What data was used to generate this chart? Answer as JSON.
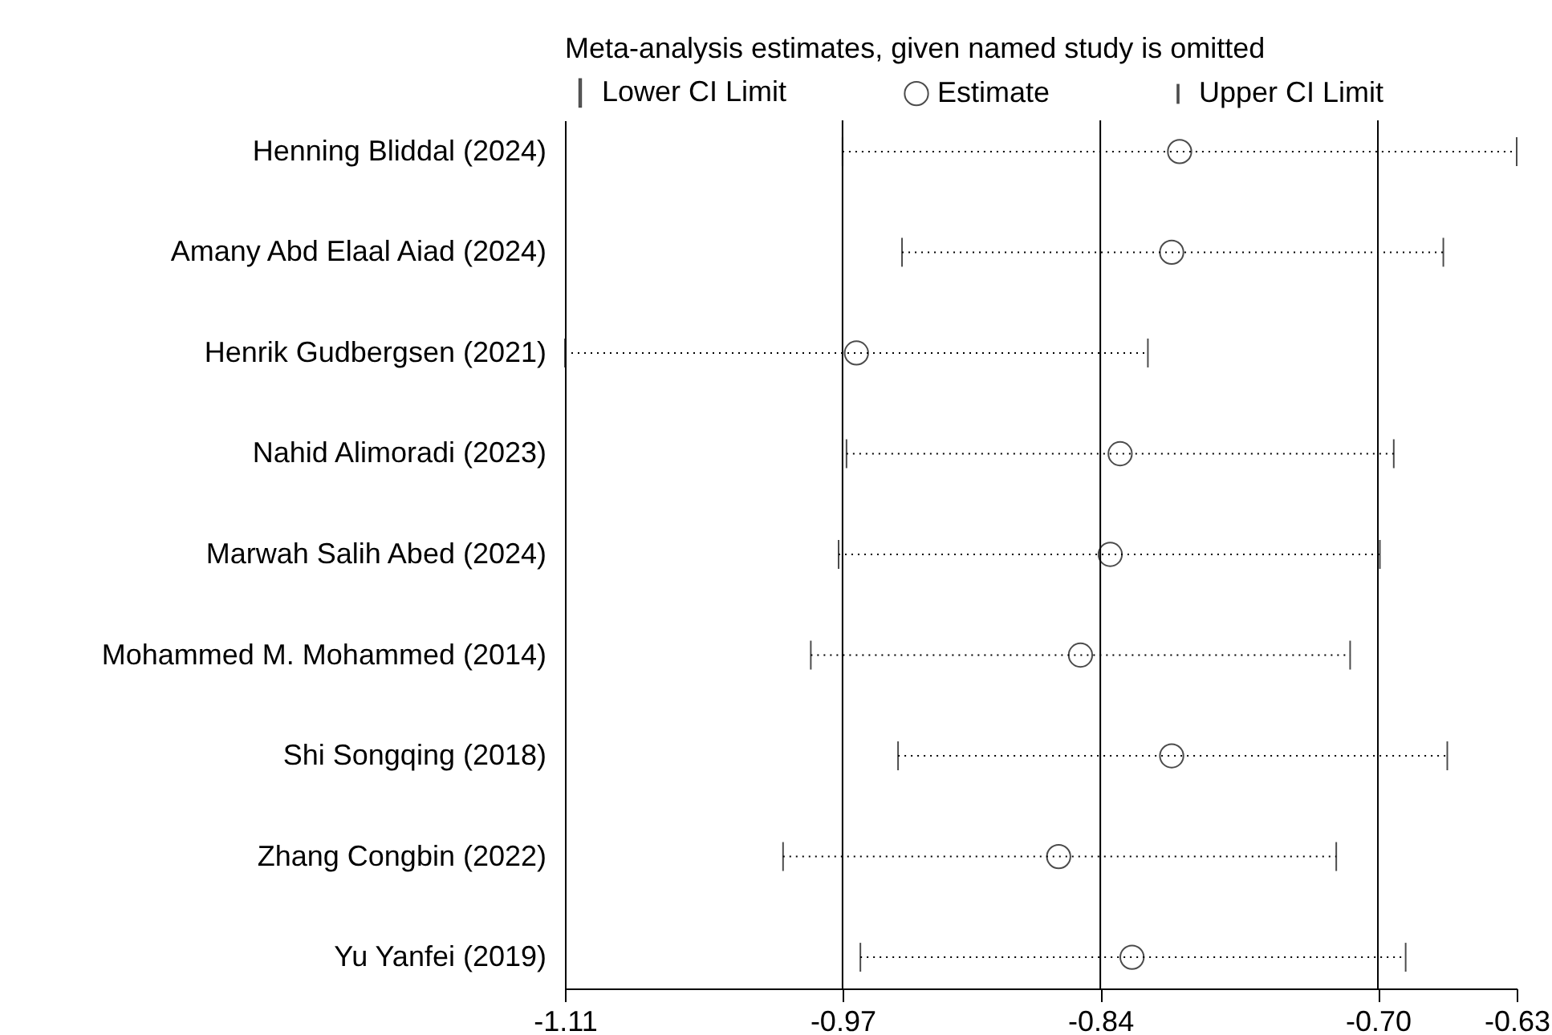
{
  "chart_data": {
    "type": "scatter",
    "orientation": "horizontal",
    "title": "Meta-analysis estimates, given named study is omitted",
    "categories": [
      "Henning Bliddal (2024)",
      "Amany Abd Elaal Aiad  (2024)",
      "Henrik Gudbergsen (2021)",
      "Nahid Alimoradi  (2023)",
      "Marwah Salih Abed (2024)",
      "Mohammed M. Mohammed (2014)",
      "Shi Songqing (2018)",
      "Zhang Congbin (2022)",
      "Yu Yanfei (2019)"
    ],
    "series": [
      {
        "name": "Estimate",
        "color": "#000000",
        "marker": "circle",
        "values": [
          -0.8,
          -0.804,
          -0.963,
          -0.83,
          -0.835,
          -0.85,
          -0.804,
          -0.861,
          -0.824
        ],
        "errors": [
          [
            -0.97,
            -0.63
          ],
          [
            -0.94,
            -0.667
          ],
          [
            -1.11,
            -0.816
          ],
          [
            -0.968,
            -0.692
          ],
          [
            -0.972,
            -0.699
          ],
          [
            -0.986,
            -0.714
          ],
          [
            -0.942,
            -0.665
          ],
          [
            -1.0,
            -0.721
          ],
          [
            -0.961,
            -0.686
          ]
        ]
      }
    ],
    "annotations": [
      "Lower CI Limit",
      "Upper CI Limit"
    ],
    "line_style": "dotted",
    "xlim": [
      -1.11,
      -0.63
    ],
    "xticks": [
      -1.11,
      -0.97,
      -0.84,
      {
        "value": -0.7,
        "label": "-0.70"
      },
      -0.63
    ],
    "ref_lines": [
      {
        "axis": "x",
        "value": -0.97
      },
      {
        "axis": "x",
        "value": -0.84
      },
      {
        "axis": "x",
        "value": -0.7
      }
    ],
    "legend": "top"
  }
}
